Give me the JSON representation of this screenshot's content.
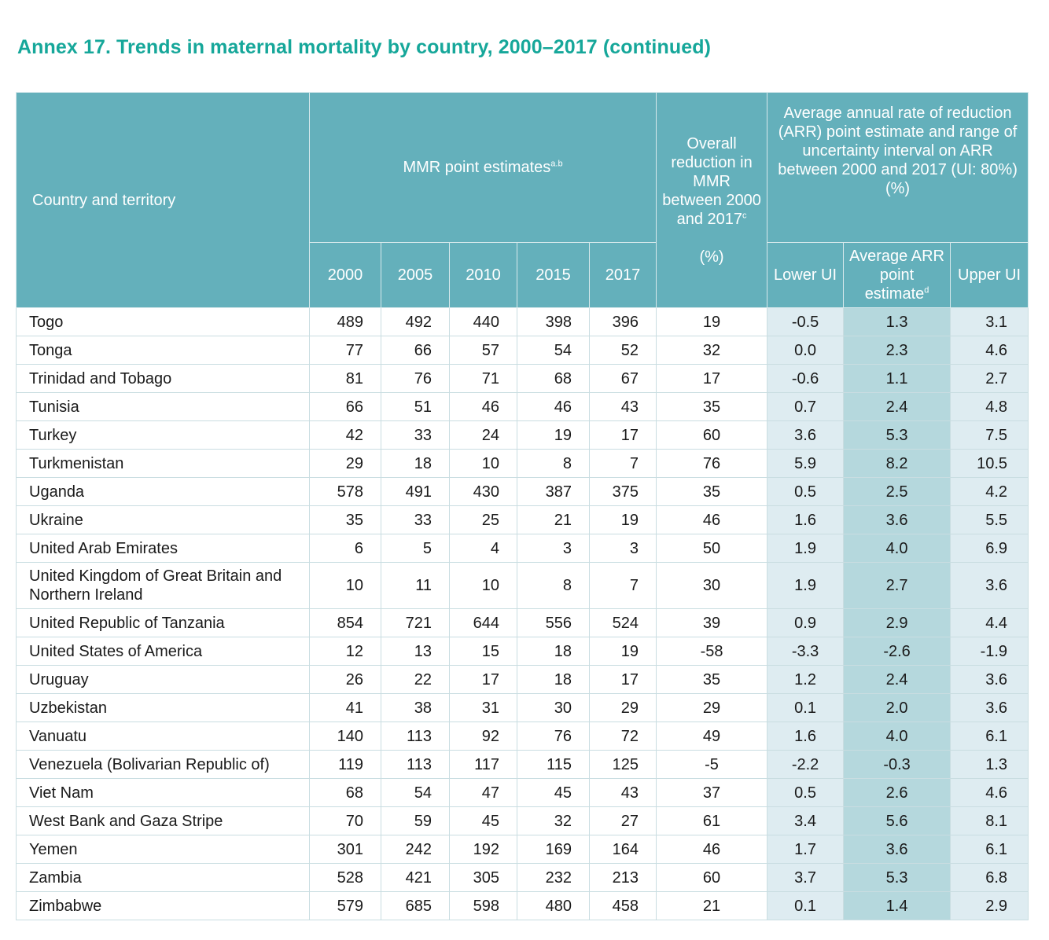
{
  "title": "Annex 17. Trends in maternal mortality by country, 2000–2017 (continued)",
  "header": {
    "country": "Country and territory",
    "mmr": "MMR point estimates",
    "mmr_sup": "a.b",
    "years": [
      "2000",
      "2005",
      "2010",
      "2015",
      "2017"
    ],
    "overall": "Overall reduction in MMR between 2000 and 2017",
    "overall_sup": "c",
    "overall_unit": "(%)",
    "arr": "Average annual rate of reduction (ARR) point estimate and range of uncertainty interval on ARR between 2000 and 2017 (UI: 80%)",
    "arr_unit": "(%)",
    "lower": "Lower UI",
    "avg": "Average ARR point estimate",
    "avg_sup": "d",
    "upper": "Upper UI"
  },
  "rows": [
    {
      "name": "Togo",
      "v": [
        "489",
        "492",
        "440",
        "398",
        "396"
      ],
      "overall": "19",
      "lower": "-0.5",
      "avg": "1.3",
      "upper": "3.1"
    },
    {
      "name": "Tonga",
      "v": [
        "77",
        "66",
        "57",
        "54",
        "52"
      ],
      "overall": "32",
      "lower": "0.0",
      "avg": "2.3",
      "upper": "4.6"
    },
    {
      "name": "Trinidad and Tobago",
      "v": [
        "81",
        "76",
        "71",
        "68",
        "67"
      ],
      "overall": "17",
      "lower": "-0.6",
      "avg": "1.1",
      "upper": "2.7"
    },
    {
      "name": "Tunisia",
      "v": [
        "66",
        "51",
        "46",
        "46",
        "43"
      ],
      "overall": "35",
      "lower": "0.7",
      "avg": "2.4",
      "upper": "4.8"
    },
    {
      "name": "Turkey",
      "v": [
        "42",
        "33",
        "24",
        "19",
        "17"
      ],
      "overall": "60",
      "lower": "3.6",
      "avg": "5.3",
      "upper": "7.5"
    },
    {
      "name": "Turkmenistan",
      "v": [
        "29",
        "18",
        "10",
        "8",
        "7"
      ],
      "overall": "76",
      "lower": "5.9",
      "avg": "8.2",
      "upper": "10.5"
    },
    {
      "name": "Uganda",
      "v": [
        "578",
        "491",
        "430",
        "387",
        "375"
      ],
      "overall": "35",
      "lower": "0.5",
      "avg": "2.5",
      "upper": "4.2"
    },
    {
      "name": "Ukraine",
      "v": [
        "35",
        "33",
        "25",
        "21",
        "19"
      ],
      "overall": "46",
      "lower": "1.6",
      "avg": "3.6",
      "upper": "5.5"
    },
    {
      "name": "United Arab Emirates",
      "v": [
        "6",
        "5",
        "4",
        "3",
        "3"
      ],
      "overall": "50",
      "lower": "1.9",
      "avg": "4.0",
      "upper": "6.9"
    },
    {
      "name": "United Kingdom of Great Britain and Northern Ireland",
      "v": [
        "10",
        "11",
        "10",
        "8",
        "7"
      ],
      "overall": "30",
      "lower": "1.9",
      "avg": "2.7",
      "upper": "3.6"
    },
    {
      "name": "United Republic of Tanzania",
      "v": [
        "854",
        "721",
        "644",
        "556",
        "524"
      ],
      "overall": "39",
      "lower": "0.9",
      "avg": "2.9",
      "upper": "4.4"
    },
    {
      "name": "United States of America",
      "v": [
        "12",
        "13",
        "15",
        "18",
        "19"
      ],
      "overall": "-58",
      "lower": "-3.3",
      "avg": "-2.6",
      "upper": "-1.9"
    },
    {
      "name": "Uruguay",
      "v": [
        "26",
        "22",
        "17",
        "18",
        "17"
      ],
      "overall": "35",
      "lower": "1.2",
      "avg": "2.4",
      "upper": "3.6"
    },
    {
      "name": "Uzbekistan",
      "v": [
        "41",
        "38",
        "31",
        "30",
        "29"
      ],
      "overall": "29",
      "lower": "0.1",
      "avg": "2.0",
      "upper": "3.6"
    },
    {
      "name": "Vanuatu",
      "v": [
        "140",
        "113",
        "92",
        "76",
        "72"
      ],
      "overall": "49",
      "lower": "1.6",
      "avg": "4.0",
      "upper": "6.1"
    },
    {
      "name": "Venezuela (Bolivarian Republic of)",
      "v": [
        "119",
        "113",
        "117",
        "115",
        "125"
      ],
      "overall": "-5",
      "lower": "-2.2",
      "avg": "-0.3",
      "upper": "1.3"
    },
    {
      "name": "Viet Nam",
      "v": [
        "68",
        "54",
        "47",
        "45",
        "43"
      ],
      "overall": "37",
      "lower": "0.5",
      "avg": "2.6",
      "upper": "4.6"
    },
    {
      "name": "West Bank and Gaza Stripe",
      "v": [
        "70",
        "59",
        "45",
        "32",
        "27"
      ],
      "overall": "61",
      "lower": "3.4",
      "avg": "5.6",
      "upper": "8.1"
    },
    {
      "name": "Yemen",
      "v": [
        "301",
        "242",
        "192",
        "169",
        "164"
      ],
      "overall": "46",
      "lower": "1.7",
      "avg": "3.6",
      "upper": "6.1"
    },
    {
      "name": "Zambia",
      "v": [
        "528",
        "421",
        "305",
        "232",
        "213"
      ],
      "overall": "60",
      "lower": "3.7",
      "avg": "5.3",
      "upper": "6.8"
    },
    {
      "name": "Zimbabwe",
      "v": [
        "579",
        "685",
        "598",
        "480",
        "458"
      ],
      "overall": "21",
      "lower": "0.1",
      "avg": "1.4",
      "upper": "2.9"
    }
  ]
}
